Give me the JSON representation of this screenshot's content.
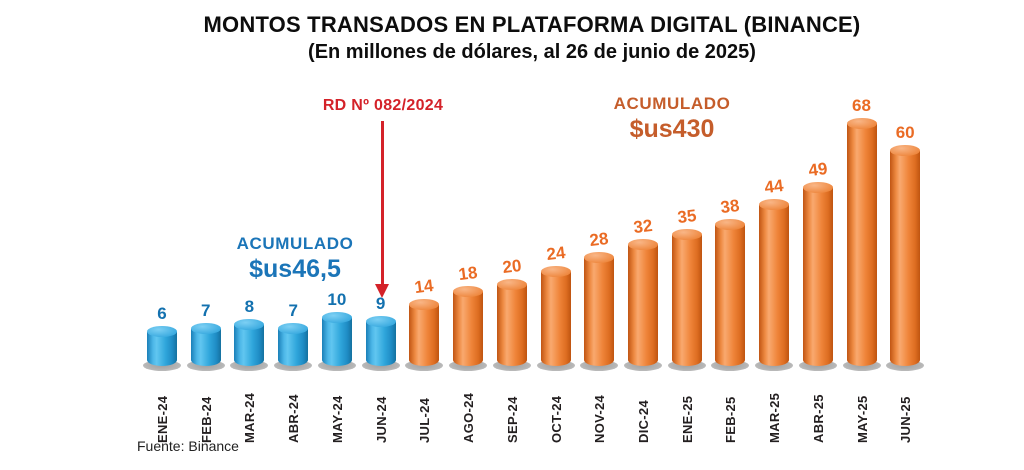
{
  "title": {
    "line1": "MONTOS TRANSADOS EN PLATAFORMA DIGITAL (BINANCE)",
    "line2": "(En millones de dólares, al 26 de junio de 2025)"
  },
  "annotations": {
    "decree": {
      "label": "RD Nº 082/2024",
      "color": "#d42229",
      "points_to": "JUN-24"
    },
    "accumulated_blue": {
      "label": "ACUMULADO",
      "value": "$us46,5",
      "color": "#1b75b8"
    },
    "accumulated_orange": {
      "label": "ACUMULADO",
      "value": "$us430",
      "color": "#c55d2b"
    }
  },
  "source": "Fuente: Binance",
  "chart_data": {
    "type": "bar",
    "title": "MONTOS TRANSADOS EN PLATAFORMA DIGITAL (BINANCE)",
    "subtitle": "(En millones de dólares, al 26 de junio de 2025)",
    "categories": [
      "ENE-24",
      "FEB-24",
      "MAR-24",
      "ABR-24",
      "MAY-24",
      "JUN-24",
      "JUL-24",
      "AGO-24",
      "SEP-24",
      "OCT-24",
      "NOV-24",
      "DIC-24",
      "ENE-25",
      "FEB-25",
      "MAR-25",
      "ABR-25",
      "MAY-25",
      "JUN-25"
    ],
    "values": [
      6,
      7,
      8,
      7,
      10,
      9,
      14,
      18,
      20,
      24,
      28,
      32,
      35,
      38,
      44,
      49,
      68,
      60
    ],
    "segments": [
      {
        "name": "ENE-24 a JUN-24",
        "bar_color": "#2aa0d8",
        "label_color": "#1371af",
        "count": 6,
        "accumulated": "$us46,5"
      },
      {
        "name": "JUL-24 a JUN-25",
        "bar_color": "#ed7d31",
        "label_color": "#ea6b24",
        "count": 12,
        "accumulated_total": "$us430"
      }
    ],
    "xlabel": "",
    "ylabel": "",
    "ylim": [
      0,
      70
    ],
    "grid": false,
    "legend": false,
    "bar_style": "3d-cylinder",
    "value_labels": true
  }
}
